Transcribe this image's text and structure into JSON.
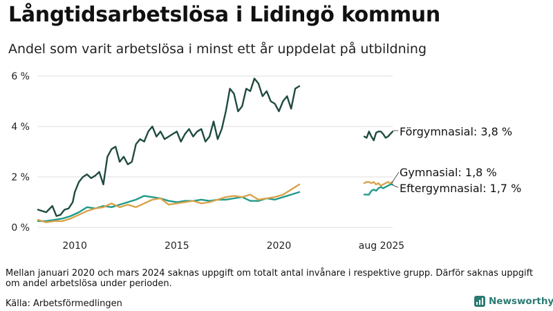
{
  "title": "Långtidsarbetslösa i Lidingö kommun",
  "subtitle": "Andel som varit arbetslösa i minst ett år uppdelat på utbildning",
  "note": "Mellan januari 2020 och mars 2024 saknas uppgift om totalt antal invånare i respektive grupp. Därför saknas uppgift om andel arbetslösa under perioden.",
  "source": "Källa: Arbetsförmedlingen",
  "brand": {
    "name": "Newsworthy",
    "icon": "newsworthy-logo-icon",
    "color": "#2c7b73"
  },
  "chart_data": {
    "type": "line",
    "title": "Långtidsarbetslösa i Lidingö kommun",
    "xlabel": "",
    "ylabel": "",
    "ylim": [
      0,
      6
    ],
    "y_ticks": [
      0,
      2,
      4,
      6
    ],
    "y_tick_labels": [
      "0 %",
      "2 %",
      "4 %",
      "6 %"
    ],
    "x_ticks": [
      2010,
      2015,
      2020
    ],
    "x_tick_labels": [
      "2010",
      "2015",
      "2020"
    ],
    "grid": true,
    "gap_label": "aug 2025",
    "main_x_range": [
      2008.2,
      2021.0
    ],
    "recent_x_range": [
      0,
      12
    ],
    "series": [
      {
        "name": "Förgymnasial",
        "color": "#1e4a40",
        "label": "Förgymnasial: 3,8 %",
        "x": [
          2008.2,
          2008.6,
          2008.9,
          2009.1,
          2009.3,
          2009.5,
          2009.7,
          2009.9,
          2010.0,
          2010.2,
          2010.4,
          2010.6,
          2010.8,
          2011.0,
          2011.2,
          2011.4,
          2011.6,
          2011.8,
          2012.0,
          2012.2,
          2012.4,
          2012.6,
          2012.8,
          2013.0,
          2013.2,
          2013.4,
          2013.6,
          2013.8,
          2014.0,
          2014.2,
          2014.4,
          2014.6,
          2014.8,
          2015.0,
          2015.2,
          2015.4,
          2015.6,
          2015.8,
          2016.0,
          2016.2,
          2016.4,
          2016.6,
          2016.8,
          2017.0,
          2017.2,
          2017.4,
          2017.6,
          2017.8,
          2018.0,
          2018.2,
          2018.4,
          2018.6,
          2018.8,
          2019.0,
          2019.2,
          2019.4,
          2019.6,
          2019.8,
          2020.0,
          2020.2,
          2020.4,
          2020.6,
          2020.8,
          2021.0
        ],
        "values": [
          0.7,
          0.6,
          0.85,
          0.45,
          0.5,
          0.7,
          0.75,
          1.0,
          1.4,
          1.8,
          2.0,
          2.1,
          1.95,
          2.05,
          2.2,
          1.7,
          2.8,
          3.1,
          3.2,
          2.6,
          2.8,
          2.5,
          2.6,
          3.3,
          3.5,
          3.4,
          3.8,
          4.0,
          3.6,
          3.8,
          3.5,
          3.6,
          3.7,
          3.8,
          3.4,
          3.7,
          3.9,
          3.6,
          3.8,
          3.9,
          3.4,
          3.6,
          4.2,
          3.5,
          3.9,
          4.6,
          5.5,
          5.3,
          4.6,
          4.8,
          5.5,
          5.4,
          5.9,
          5.7,
          5.2,
          5.4,
          5.0,
          4.9,
          4.6,
          5.0,
          5.2,
          4.7,
          5.5,
          5.6
        ]
      },
      {
        "name": "Gymnasial",
        "color": "#d9a24a",
        "label": "Gymnasial: 1,8 %",
        "x": [
          2008.2,
          2008.6,
          2009.0,
          2009.4,
          2009.8,
          2010.2,
          2010.6,
          2011.0,
          2011.4,
          2011.8,
          2012.2,
          2012.6,
          2013.0,
          2013.4,
          2013.8,
          2014.2,
          2014.6,
          2015.0,
          2015.4,
          2015.8,
          2016.2,
          2016.6,
          2017.0,
          2017.4,
          2017.8,
          2018.2,
          2018.6,
          2019.0,
          2019.4,
          2019.8,
          2020.2,
          2020.6,
          2021.0
        ],
        "values": [
          0.3,
          0.2,
          0.25,
          0.25,
          0.35,
          0.5,
          0.65,
          0.75,
          0.8,
          0.95,
          0.8,
          0.9,
          0.8,
          0.95,
          1.1,
          1.15,
          0.9,
          0.95,
          1.0,
          1.05,
          0.95,
          1.0,
          1.1,
          1.2,
          1.25,
          1.2,
          1.3,
          1.1,
          1.15,
          1.2,
          1.3,
          1.5,
          1.7
        ]
      },
      {
        "name": "Eftergymnasial",
        "color": "#1f9a8a",
        "label": "Eftergymnasial: 1,7 %",
        "x": [
          2008.2,
          2008.6,
          2009.0,
          2009.4,
          2009.8,
          2010.2,
          2010.6,
          2011.0,
          2011.4,
          2011.8,
          2012.2,
          2012.6,
          2013.0,
          2013.4,
          2013.8,
          2014.2,
          2014.6,
          2015.0,
          2015.4,
          2015.8,
          2016.2,
          2016.6,
          2017.0,
          2017.4,
          2017.8,
          2018.2,
          2018.6,
          2019.0,
          2019.4,
          2019.8,
          2020.2,
          2020.6,
          2021.0
        ],
        "values": [
          0.25,
          0.25,
          0.3,
          0.35,
          0.45,
          0.6,
          0.8,
          0.75,
          0.85,
          0.8,
          0.9,
          1.0,
          1.1,
          1.25,
          1.2,
          1.15,
          1.05,
          1.0,
          1.05,
          1.05,
          1.1,
          1.05,
          1.1,
          1.1,
          1.15,
          1.2,
          1.05,
          1.05,
          1.15,
          1.1,
          1.2,
          1.3,
          1.4
        ]
      }
    ],
    "recent": [
      {
        "name": "Förgymnasial",
        "x": [
          0,
          1,
          2,
          3,
          4,
          5,
          6,
          7,
          8,
          9,
          10,
          11,
          12
        ],
        "values": [
          3.6,
          3.55,
          3.8,
          3.6,
          3.45,
          3.75,
          3.8,
          3.8,
          3.7,
          3.55,
          3.6,
          3.7,
          3.8
        ]
      },
      {
        "name": "Gymnasial",
        "x": [
          0,
          1,
          2,
          3,
          4,
          5,
          6,
          7,
          8,
          9,
          10,
          11,
          12
        ],
        "values": [
          1.75,
          1.8,
          1.8,
          1.75,
          1.8,
          1.7,
          1.75,
          1.65,
          1.7,
          1.75,
          1.8,
          1.75,
          1.8
        ]
      },
      {
        "name": "Eftergymnasial",
        "x": [
          0,
          1,
          2,
          3,
          4,
          5,
          6,
          7,
          8,
          9,
          10,
          11,
          12
        ],
        "values": [
          1.3,
          1.3,
          1.3,
          1.45,
          1.5,
          1.45,
          1.55,
          1.6,
          1.55,
          1.6,
          1.65,
          1.7,
          1.7
        ]
      }
    ]
  }
}
